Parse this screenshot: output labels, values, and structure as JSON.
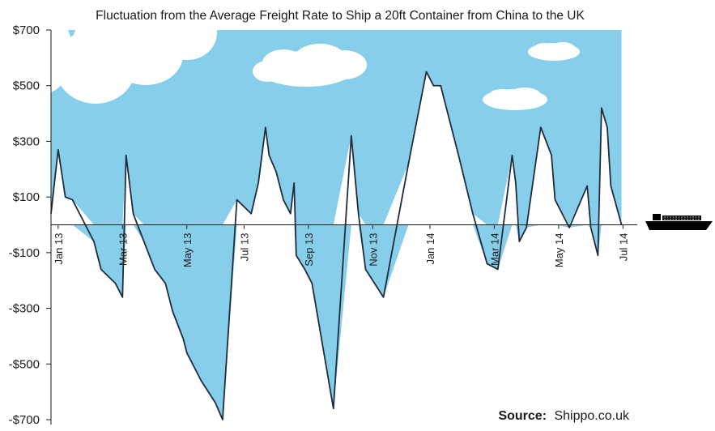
{
  "chart_data": {
    "type": "area",
    "title": "Fluctuation from the Average Freight Rate to Ship a 20ft Container from China to the UK",
    "xlabel": "",
    "ylabel": "",
    "ylim": [
      -700,
      700
    ],
    "y_ticks": [
      {
        "value": 700,
        "label": "$700"
      },
      {
        "value": 500,
        "label": "$500"
      },
      {
        "value": 300,
        "label": "$300"
      },
      {
        "value": 100,
        "label": "$100"
      },
      {
        "value": -100,
        "label": "-$100"
      },
      {
        "value": -300,
        "label": "-$300"
      },
      {
        "value": -500,
        "label": "-$500"
      },
      {
        "value": -700,
        "label": "-$700"
      }
    ],
    "x_ticks": [
      {
        "week": 1,
        "label": "Jan 13"
      },
      {
        "week": 10,
        "label": "Mar 13"
      },
      {
        "week": 19,
        "label": "May 13"
      },
      {
        "week": 27,
        "label": "Jul 13"
      },
      {
        "week": 36,
        "label": "Sep 13"
      },
      {
        "week": 45,
        "label": "Nov 13"
      },
      {
        "week": 53,
        "label": "Jan 14"
      },
      {
        "week": 62,
        "label": "Mar 14"
      },
      {
        "week": 71,
        "label": "May 14"
      },
      {
        "week": 80,
        "label": "Jul 14"
      }
    ],
    "xlim": [
      0,
      82
    ],
    "series": [
      {
        "name": "Fluctuation from average freight rate",
        "points": [
          [
            0,
            40
          ],
          [
            1,
            270
          ],
          [
            2,
            100
          ],
          [
            3,
            90
          ],
          [
            6,
            -60
          ],
          [
            7,
            -160
          ],
          [
            9,
            -210
          ],
          [
            10,
            -260
          ],
          [
            10.5,
            250
          ],
          [
            11.5,
            40
          ],
          [
            13,
            -60
          ],
          [
            14.5,
            -160
          ],
          [
            16,
            -210
          ],
          [
            17,
            -310
          ],
          [
            18.5,
            -410
          ],
          [
            19,
            -460
          ],
          [
            21,
            -560
          ],
          [
            23,
            -640
          ],
          [
            24,
            -700
          ],
          [
            26,
            90
          ],
          [
            28,
            40
          ],
          [
            29,
            150
          ],
          [
            30,
            350
          ],
          [
            30.5,
            250
          ],
          [
            31.5,
            190
          ],
          [
            32.5,
            90
          ],
          [
            33.5,
            40
          ],
          [
            34,
            150
          ],
          [
            34.3,
            -110
          ],
          [
            35.5,
            -160
          ],
          [
            36.5,
            -210
          ],
          [
            39.5,
            -660
          ],
          [
            42,
            320
          ],
          [
            43,
            40
          ],
          [
            44,
            -160
          ],
          [
            46.5,
            -260
          ],
          [
            50,
            220
          ],
          [
            52.5,
            550
          ],
          [
            53.5,
            500
          ],
          [
            54.5,
            500
          ],
          [
            57,
            250
          ],
          [
            59,
            40
          ],
          [
            61,
            -140
          ],
          [
            62.5,
            -160
          ],
          [
            64.5,
            250
          ],
          [
            65,
            150
          ],
          [
            65.5,
            -60
          ],
          [
            66.5,
            -10
          ],
          [
            68.5,
            350
          ],
          [
            70,
            250
          ],
          [
            70.5,
            90
          ],
          [
            72.5,
            -10
          ],
          [
            75,
            140
          ],
          [
            75.5,
            -10
          ],
          [
            76.5,
            -110
          ],
          [
            77,
            420
          ],
          [
            77.8,
            350
          ],
          [
            78.3,
            140
          ],
          [
            79.8,
            0
          ]
        ]
      }
    ],
    "annotations": [
      {
        "kind": "source",
        "label": "Source:",
        "value": "Shippo.co.uk"
      }
    ],
    "colors": {
      "fill": "#87CEEB",
      "line": "#1f2d3d",
      "axis": "#1a1a1a",
      "ship": "#000000",
      "cloud": "#ffffff"
    },
    "legend": "none",
    "grid": false
  }
}
